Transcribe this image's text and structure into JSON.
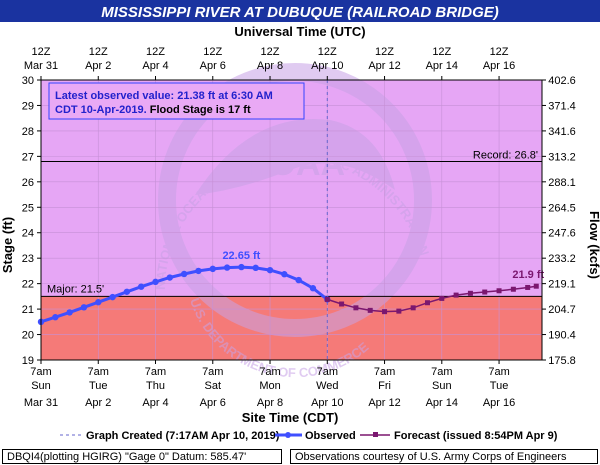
{
  "colors": {
    "title_bg": "#1a33a0",
    "title_text": "#ffffff",
    "zone_normal": "#e6a6f5",
    "zone_major": "#f57a78",
    "observed": "#3f4fff",
    "forecast": "#7b176f",
    "info_text": "#2222cc",
    "info_border": "#3344ff",
    "watermark": "#c8a2e6"
  },
  "chart_data": {
    "type": "line",
    "title": "MISSISSIPPI RIVER AT DUBUQUE (RAILROAD BRIDGE)",
    "top_axis_label": "Universal Time (UTC)",
    "bottom_axis_label": "Site Time (CDT)",
    "ylabel": "Stage (ft)",
    "y2label": "Flow (kcfs)",
    "ylim": [
      19,
      30
    ],
    "xlim_days": [
      0,
      17.5
    ],
    "y_ticks": [
      19,
      20,
      21,
      22,
      23,
      24,
      25,
      26,
      27,
      28,
      29,
      30
    ],
    "y2_ticks": [
      {
        "stage": 30,
        "label": "402.6"
      },
      {
        "stage": 29,
        "label": "371.4"
      },
      {
        "stage": 28,
        "label": "341.6"
      },
      {
        "stage": 27,
        "label": "313.2"
      },
      {
        "stage": 26,
        "label": "288.1"
      },
      {
        "stage": 25,
        "label": "264.5"
      },
      {
        "stage": 24,
        "label": "247.6"
      },
      {
        "stage": 23,
        "label": "233.2"
      },
      {
        "stage": 22,
        "label": "219.1"
      },
      {
        "stage": 21,
        "label": "204.7"
      },
      {
        "stage": 20,
        "label": "190.4"
      },
      {
        "stage": 19,
        "label": "175.8"
      }
    ],
    "top_ticks": [
      {
        "day": 0,
        "l1": "12Z",
        "l2": "Mar 31"
      },
      {
        "day": 2,
        "l1": "12Z",
        "l2": "Apr  2"
      },
      {
        "day": 4,
        "l1": "12Z",
        "l2": "Apr  4"
      },
      {
        "day": 6,
        "l1": "12Z",
        "l2": "Apr  6"
      },
      {
        "day": 8,
        "l1": "12Z",
        "l2": "Apr  8"
      },
      {
        "day": 10,
        "l1": "12Z",
        "l2": "Apr 10"
      },
      {
        "day": 12,
        "l1": "12Z",
        "l2": "Apr 12"
      },
      {
        "day": 14,
        "l1": "12Z",
        "l2": "Apr 14"
      },
      {
        "day": 16,
        "l1": "12Z",
        "l2": "Apr 16"
      }
    ],
    "bottom_ticks": [
      {
        "day": 0,
        "l1": "7am",
        "l2": "Sun",
        "l3": "Mar 31"
      },
      {
        "day": 2,
        "l1": "7am",
        "l2": "Tue",
        "l3": "Apr 2"
      },
      {
        "day": 4,
        "l1": "7am",
        "l2": "Thu",
        "l3": "Apr 4"
      },
      {
        "day": 6,
        "l1": "7am",
        "l2": "Sat",
        "l3": "Apr 6"
      },
      {
        "day": 8,
        "l1": "7am",
        "l2": "Mon",
        "l3": "Apr 8"
      },
      {
        "day": 10,
        "l1": "7am",
        "l2": "Wed",
        "l3": "Apr 10"
      },
      {
        "day": 12,
        "l1": "7am",
        "l2": "Fri",
        "l3": "Apr 12"
      },
      {
        "day": 14,
        "l1": "7am",
        "l2": "Sun",
        "l3": "Apr 14"
      },
      {
        "day": 16,
        "l1": "7am",
        "l2": "Tue",
        "l3": "Apr 16"
      }
    ],
    "thresholds": [
      {
        "name": "Record",
        "value": 26.8,
        "label": "Record: 26.8'"
      },
      {
        "name": "Major",
        "value": 21.5,
        "label": "Major: 21.5'"
      }
    ],
    "now_day": 10,
    "observed": {
      "name": "Observed",
      "points": [
        {
          "day": 0.0,
          "stage": 20.5
        },
        {
          "day": 0.5,
          "stage": 20.68
        },
        {
          "day": 1.0,
          "stage": 20.87
        },
        {
          "day": 1.5,
          "stage": 21.07
        },
        {
          "day": 2.0,
          "stage": 21.27
        },
        {
          "day": 2.5,
          "stage": 21.47
        },
        {
          "day": 3.0,
          "stage": 21.68
        },
        {
          "day": 3.5,
          "stage": 21.88
        },
        {
          "day": 4.0,
          "stage": 22.07
        },
        {
          "day": 4.5,
          "stage": 22.24
        },
        {
          "day": 5.0,
          "stage": 22.38
        },
        {
          "day": 5.5,
          "stage": 22.5
        },
        {
          "day": 6.0,
          "stage": 22.58
        },
        {
          "day": 6.5,
          "stage": 22.63
        },
        {
          "day": 7.0,
          "stage": 22.65
        },
        {
          "day": 7.5,
          "stage": 22.62
        },
        {
          "day": 8.0,
          "stage": 22.53
        },
        {
          "day": 8.5,
          "stage": 22.37
        },
        {
          "day": 9.0,
          "stage": 22.14
        },
        {
          "day": 9.5,
          "stage": 21.82
        },
        {
          "day": 10.0,
          "stage": 21.38
        }
      ],
      "peak_label": "22.65 ft",
      "peak_day": 7.0
    },
    "forecast": {
      "name": "Forecast",
      "points": [
        {
          "day": 10.0,
          "stage": 21.38
        },
        {
          "day": 10.5,
          "stage": 21.2
        },
        {
          "day": 11.0,
          "stage": 21.05
        },
        {
          "day": 11.5,
          "stage": 20.95
        },
        {
          "day": 12.0,
          "stage": 20.9
        },
        {
          "day": 12.5,
          "stage": 20.92
        },
        {
          "day": 13.0,
          "stage": 21.05
        },
        {
          "day": 13.5,
          "stage": 21.25
        },
        {
          "day": 14.0,
          "stage": 21.42
        },
        {
          "day": 14.5,
          "stage": 21.55
        },
        {
          "day": 15.0,
          "stage": 21.62
        },
        {
          "day": 15.5,
          "stage": 21.67
        },
        {
          "day": 16.0,
          "stage": 21.72
        },
        {
          "day": 16.5,
          "stage": 21.78
        },
        {
          "day": 17.0,
          "stage": 21.85
        },
        {
          "day": 17.3,
          "stage": 21.9
        }
      ],
      "end_label": "21.9 ft"
    },
    "info_box": {
      "line1": "Latest observed value: 21.38 ft at 6:30 AM",
      "line2a": "CDT 10-Apr-2019.",
      "line2b": " Flood Stage is 17 ft"
    },
    "legend": {
      "created": "Graph Created (7:17AM Apr 10, 2019)",
      "observed": "Observed",
      "forecast": "Forecast (issued 8:54PM Apr 9)"
    },
    "watermark": {
      "logo": "NOAA",
      "ring": "NATIONAL OCEANIC AND ATMOSPHERIC ADMINISTRATION",
      "dept": "U.S. DEPARTMENT OF COMMERCE"
    }
  },
  "footer": {
    "left": "DBQI4(plotting HGIRG) \"Gage 0\" Datum:  585.47'",
    "right": "Observations courtesy of U.S. Army Corps of Engineers"
  }
}
